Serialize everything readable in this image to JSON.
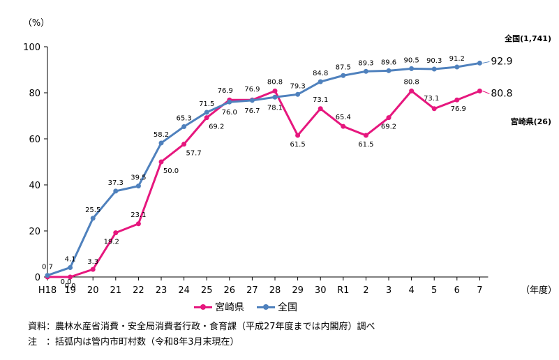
{
  "chart_data": {
    "type": "line",
    "ylabel": "（%）",
    "xlabel": "（年度）",
    "ylim": [
      0,
      100
    ],
    "yticks": [
      "0",
      "20",
      "40",
      "60",
      "80",
      "100"
    ],
    "categories": [
      "H18",
      "19",
      "20",
      "21",
      "22",
      "23",
      "24",
      "25",
      "26",
      "27",
      "28",
      "29",
      "30",
      "R1",
      "2",
      "3",
      "4",
      "5",
      "6",
      "7"
    ],
    "series": [
      {
        "name": "宮崎県",
        "color": "#E6177E",
        "end_label": "宮崎県(26)",
        "values": [
          0.0,
          0.0,
          3.3,
          19.2,
          23.1,
          50.0,
          57.7,
          69.2,
          76.9,
          76.9,
          80.8,
          61.5,
          73.1,
          65.4,
          61.5,
          69.2,
          80.8,
          73.1,
          76.9,
          80.8
        ],
        "labels": [
          "",
          "0.0",
          "3.3",
          "19.2",
          "23.1",
          "50.0",
          "57.7",
          "69.2",
          "76.9",
          "76.9",
          "80.8",
          "61.5",
          "73.1",
          "65.4",
          "61.5",
          "69.2",
          "80.8",
          "73.1",
          "76.9",
          "80.8"
        ]
      },
      {
        "name": "全国",
        "color": "#4F81BD",
        "end_label": "全国(1,741)",
        "values": [
          0.7,
          4.1,
          25.5,
          37.3,
          39.5,
          58.2,
          65.3,
          71.5,
          76.0,
          76.7,
          78.1,
          79.3,
          84.8,
          87.5,
          89.3,
          89.6,
          90.5,
          90.3,
          91.2,
          92.9
        ],
        "labels": [
          "0.7",
          "4.1",
          "25.5",
          "37.3",
          "39.5",
          "58.2",
          "65.3",
          "71.5",
          "76.0",
          "76.7",
          "78.1",
          "79.3",
          "84.8",
          "87.5",
          "89.3",
          "89.6",
          "90.5",
          "90.3",
          "91.2",
          "92.9"
        ]
      }
    ],
    "extra_labels": [
      "0.0"
    ]
  },
  "legend": {
    "items": [
      {
        "label": "宮崎県",
        "color": "#E6177E"
      },
      {
        "label": "全国",
        "color": "#4F81BD"
      }
    ]
  },
  "notes": {
    "source": "資料：農林水産省消費・安全局消費者行政・食育課（平成27年度までは内閣府）調べ",
    "note": "注　：括弧内は管内市町村数（令和8年3月末現在）"
  }
}
